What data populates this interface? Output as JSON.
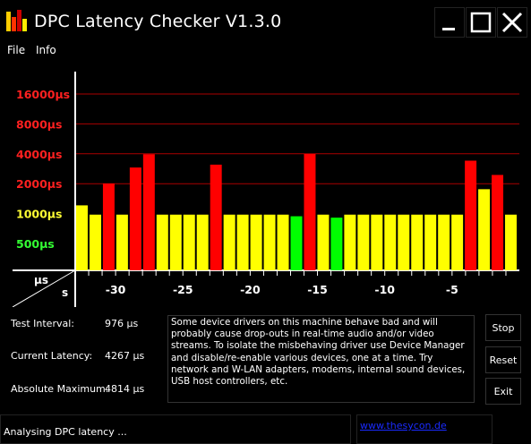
{
  "window": {
    "title": "DPC Latency Checker V1.3.0"
  },
  "menu": {
    "items": [
      "File",
      "Info"
    ]
  },
  "chart_data": {
    "type": "bar",
    "ylabels": [
      {
        "label": "16000µs",
        "color": "#ff2020"
      },
      {
        "label": "8000µs",
        "color": "#ff2020"
      },
      {
        "label": "4000µs",
        "color": "#ff2020"
      },
      {
        "label": "2000µs",
        "color": "#ff2020"
      },
      {
        "label": "1000µs",
        "color": "#ffff33"
      },
      {
        "label": "500µs",
        "color": "#33ff33"
      }
    ],
    "xlabel_unit_top": "µs",
    "xlabel_unit_bottom": "s",
    "xticks": [
      "-30",
      "-25",
      "-20",
      "-15",
      "-10",
      "-5"
    ],
    "xlim": [
      -33,
      0
    ],
    "y_scale": "log2",
    "grid": true,
    "values": [
      1210,
      976,
      2010,
      976,
      2910,
      3960,
      976,
      976,
      976,
      976,
      3110,
      976,
      976,
      976,
      976,
      976,
      940,
      3980,
      976,
      910,
      976,
      976,
      976,
      976,
      976,
      976,
      976,
      976,
      976,
      3410,
      1760,
      2450,
      976
    ],
    "colors": [
      "yellow",
      "yellow",
      "red",
      "yellow",
      "red",
      "red",
      "yellow",
      "yellow",
      "yellow",
      "yellow",
      "red",
      "yellow",
      "yellow",
      "yellow",
      "yellow",
      "yellow",
      "green",
      "red",
      "yellow",
      "green",
      "yellow",
      "yellow",
      "yellow",
      "yellow",
      "yellow",
      "yellow",
      "yellow",
      "yellow",
      "yellow",
      "red",
      "yellow",
      "red",
      "yellow"
    ],
    "palette": {
      "red": "#ff0000",
      "yellow": "#ffff00",
      "green": "#00ff00"
    }
  },
  "stats": {
    "test_interval_label": "Test Interval:",
    "test_interval_value": "976 µs",
    "current_latency_label": "Current Latency:",
    "current_latency_value": "4267 µs",
    "absolute_max_label": "Absolute Maximum:",
    "absolute_max_value": "4814 µs"
  },
  "message": "Some device drivers on this machine behave bad and will probably cause drop-outs in real-time audio and/or video streams. To isolate the misbehaving driver use Device Manager and disable/re-enable various devices, one at a time. Try network and W-LAN adapters, modems, internal sound devices, USB host controllers, etc.",
  "buttons": {
    "stop": "Stop",
    "reset": "Reset",
    "exit": "Exit"
  },
  "status": {
    "text": "Analysing DPC latency ..."
  },
  "link": {
    "text": "www.thesycon.de"
  },
  "icons": {
    "app": "bar-chart-icon",
    "minimize": "minimize-icon",
    "maximize": "maximize-icon",
    "close": "close-icon"
  }
}
